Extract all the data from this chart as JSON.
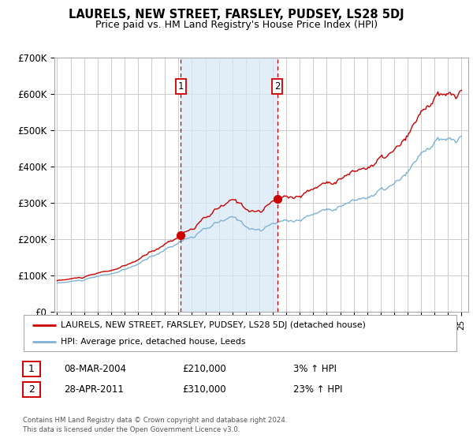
{
  "title": "LAURELS, NEW STREET, FARSLEY, PUDSEY, LS28 5DJ",
  "subtitle": "Price paid vs. HM Land Registry's House Price Index (HPI)",
  "property_label": "LAURELS, NEW STREET, FARSLEY, PUDSEY, LS28 5DJ (detached house)",
  "hpi_label": "HPI: Average price, detached house, Leeds",
  "footer1": "Contains HM Land Registry data © Crown copyright and database right 2024.",
  "footer2": "This data is licensed under the Open Government Licence v3.0.",
  "transaction1": {
    "label": "1",
    "date": "08-MAR-2004",
    "price": "£210,000",
    "hpi": "3% ↑ HPI"
  },
  "transaction2": {
    "label": "2",
    "date": "28-APR-2011",
    "price": "£310,000",
    "hpi": "23% ↑ HPI"
  },
  "ylim": [
    0,
    700000
  ],
  "yticks": [
    0,
    100000,
    200000,
    300000,
    400000,
    500000,
    600000,
    700000
  ],
  "ytick_labels": [
    "£0",
    "£100K",
    "£200K",
    "£300K",
    "£400K",
    "£500K",
    "£600K",
    "£700K"
  ],
  "property_color": "#cc0000",
  "hpi_color": "#7fb3d3",
  "vline_color": "#cc0000",
  "background_color": "#ffffff",
  "grid_color": "#cccccc",
  "shade_color": "#d6e8f5",
  "shade_alpha": 0.7,
  "vline1_year": 2004.17,
  "vline2_year": 2011.33,
  "trans1_price": 210000,
  "trans2_price": 310000,
  "xlim_left": 1994.8,
  "xlim_right": 2025.5
}
